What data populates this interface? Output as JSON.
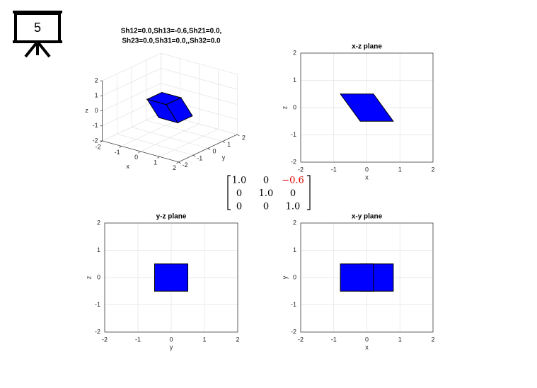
{
  "slide_number": "5",
  "matrix": {
    "rows": [
      [
        "1.0",
        "0",
        "−0.6"
      ],
      [
        "0",
        "1.0",
        "0"
      ],
      [
        "0",
        "0",
        "1.0"
      ]
    ],
    "highlight_color": "#e00000"
  },
  "chart_data": [
    {
      "type": "polygon3d",
      "title": [
        "Sh12=0.0,Sh13=-0.6,Sh21=0.0,",
        "Sh23=0.0,Sh31=0.0,,Sh32=0.0"
      ],
      "xlabel": "x",
      "ylabel": "y",
      "zlabel": "z",
      "xlim": [
        -2,
        2
      ],
      "ylim": [
        -2,
        2
      ],
      "zlim": [
        -2,
        2
      ],
      "xticks": [
        -2,
        -1,
        0,
        1,
        2
      ],
      "yticks": [
        -2,
        -1,
        0,
        1,
        2
      ],
      "zticks": [
        -2,
        -1,
        0,
        1,
        2
      ],
      "grid": true,
      "color": "#0000ff",
      "series": [
        {
          "x": [
            -0.8,
            0.2,
            0.2,
            -0.8
          ],
          "y": [
            -0.5,
            -0.5,
            0.5,
            0.5
          ],
          "z": [
            0.5,
            0.5,
            0.5,
            0.5
          ]
        },
        {
          "x": [
            -0.2,
            0.8,
            0.2,
            -0.8
          ],
          "y": [
            -0.5,
            -0.5,
            -0.5,
            -0.5
          ],
          "z": [
            -0.5,
            -0.5,
            0.5,
            0.5
          ]
        },
        {
          "x": [
            0.8,
            0.8,
            0.2,
            0.2
          ],
          "y": [
            -0.5,
            0.5,
            0.5,
            -0.5
          ],
          "z": [
            -0.5,
            -0.5,
            0.5,
            0.5
          ]
        }
      ]
    },
    {
      "type": "polygon",
      "title": "x-z plane",
      "xlabel": "x",
      "ylabel": "z",
      "xlim": [
        -2,
        2
      ],
      "ylim": [
        -2,
        2
      ],
      "xticks": [
        -2,
        -1,
        0,
        1,
        2
      ],
      "yticks": [
        -2,
        -1,
        0,
        1,
        2
      ],
      "grid": true,
      "color": "#0000ff",
      "series": [
        {
          "x": [
            -0.8,
            0.2,
            0.8,
            -0.2
          ],
          "values": [
            0.5,
            0.5,
            -0.5,
            -0.5
          ]
        }
      ]
    },
    {
      "type": "polygon",
      "title": "y-z plane",
      "xlabel": "y",
      "ylabel": "z",
      "xlim": [
        -2,
        2
      ],
      "ylim": [
        -2,
        2
      ],
      "xticks": [
        -2,
        -1,
        0,
        1,
        2
      ],
      "yticks": [
        -2,
        -1,
        0,
        1,
        2
      ],
      "grid": true,
      "color": "#0000ff",
      "series": [
        {
          "x": [
            -0.5,
            0.5,
            0.5,
            -0.5
          ],
          "values": [
            -0.5,
            -0.5,
            0.5,
            0.5
          ]
        }
      ]
    },
    {
      "type": "polygon",
      "title": "x-y plane",
      "xlabel": "x",
      "ylabel": "y",
      "xlim": [
        -2,
        2
      ],
      "ylim": [
        -2,
        2
      ],
      "xticks": [
        -2,
        -1,
        0,
        1,
        2
      ],
      "yticks": [
        -2,
        -1,
        0,
        1,
        2
      ],
      "grid": true,
      "color": "#0000ff",
      "series": [
        {
          "x": [
            -0.2,
            0.8,
            0.8,
            -0.2
          ],
          "values": [
            -0.5,
            -0.5,
            0.5,
            0.5
          ]
        },
        {
          "x": [
            -0.8,
            0.2,
            0.2,
            -0.8
          ],
          "values": [
            -0.5,
            -0.5,
            0.5,
            0.5
          ]
        }
      ]
    }
  ]
}
